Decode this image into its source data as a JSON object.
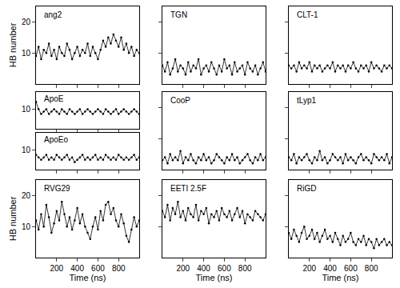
{
  "chart_data": [
    {
      "type": "scatter",
      "marker": "dot",
      "line_style": "solid",
      "tick_labels": "y",
      "y_label": "HB number",
      "x": [
        0,
        25,
        50,
        75,
        100,
        125,
        150,
        175,
        200,
        225,
        250,
        275,
        300,
        325,
        350,
        375,
        400,
        425,
        450,
        475,
        500,
        525,
        550,
        575,
        600,
        625,
        650,
        675,
        700,
        725,
        750,
        775,
        800,
        825,
        850,
        875,
        900,
        925,
        950,
        975,
        1000
      ],
      "xlim": [
        0,
        1000
      ],
      "xticks": [
        200,
        400,
        600,
        800
      ],
      "ylim": [
        0,
        25
      ],
      "yticks": [
        10,
        20
      ],
      "series": [
        {
          "name": "ang2",
          "color": "#000000",
          "values": [
            9,
            12,
            8,
            11,
            10,
            13,
            9,
            11,
            8,
            12,
            10,
            9,
            13,
            11,
            8,
            10,
            12,
            9,
            11,
            10,
            13,
            9,
            12,
            10,
            8,
            11,
            14,
            12,
            15,
            13,
            16,
            14,
            12,
            15,
            11,
            13,
            10,
            12,
            9,
            11,
            10
          ]
        }
      ]
    },
    {
      "type": "scatter",
      "marker": "dot",
      "line_style": "solid",
      "tick_labels": false,
      "x": [
        0,
        25,
        50,
        75,
        100,
        125,
        150,
        175,
        200,
        225,
        250,
        275,
        300,
        325,
        350,
        375,
        400,
        425,
        450,
        475,
        500,
        525,
        550,
        575,
        600,
        625,
        650,
        675,
        700,
        725,
        750,
        775,
        800,
        825,
        850,
        875,
        900,
        925,
        950,
        975,
        1000
      ],
      "xlim": [
        0,
        1000
      ],
      "xticks": [
        200,
        400,
        600,
        800
      ],
      "ylim": [
        0,
        25
      ],
      "yticks": [
        10,
        20
      ],
      "series": [
        {
          "name": "TGN",
          "color": "#000000",
          "values": [
            6,
            4,
            7,
            3,
            5,
            8,
            4,
            6,
            5,
            3,
            7,
            4,
            6,
            5,
            8,
            3,
            5,
            6,
            4,
            7,
            5,
            3,
            6,
            4,
            8,
            5,
            6,
            3,
            7,
            4,
            5,
            6,
            3,
            7,
            5,
            4,
            6,
            3,
            5,
            7,
            4
          ]
        }
      ]
    },
    {
      "type": "scatter",
      "marker": "dot",
      "line_style": "solid",
      "tick_labels": false,
      "x": [
        0,
        25,
        50,
        75,
        100,
        125,
        150,
        175,
        200,
        225,
        250,
        275,
        300,
        325,
        350,
        375,
        400,
        425,
        450,
        475,
        500,
        525,
        550,
        575,
        600,
        625,
        650,
        675,
        700,
        725,
        750,
        775,
        800,
        825,
        850,
        875,
        900,
        925,
        950,
        975,
        1000
      ],
      "xlim": [
        0,
        1000
      ],
      "xticks": [
        200,
        400,
        600,
        800
      ],
      "ylim": [
        0,
        25
      ],
      "yticks": [
        10,
        20
      ],
      "series": [
        {
          "name": "CLT-1",
          "color": "#000000",
          "values": [
            6,
            5,
            6,
            4,
            7,
            5,
            6,
            5,
            7,
            4,
            6,
            5,
            6,
            4,
            5,
            6,
            5,
            7,
            4,
            6,
            5,
            6,
            4,
            6,
            5,
            7,
            5,
            4,
            6,
            5,
            6,
            4,
            7,
            5,
            6,
            5,
            4,
            6,
            5,
            6,
            5
          ]
        }
      ]
    },
    {
      "type": "scatter",
      "marker": "dot",
      "line_style": "solid",
      "tick_labels": "y",
      "x": [
        0,
        25,
        50,
        75,
        100,
        125,
        150,
        175,
        200,
        225,
        250,
        275,
        300,
        325,
        350,
        375,
        400,
        425,
        450,
        475,
        500,
        525,
        550,
        575,
        600,
        625,
        650,
        675,
        700,
        725,
        750,
        775,
        800,
        825,
        850,
        875,
        900,
        925,
        950,
        975,
        1000
      ],
      "xlim": [
        0,
        1000
      ],
      "xticks": [
        200,
        400,
        600,
        800
      ],
      "ylim": [
        2,
        17
      ],
      "yticks": [
        10
      ],
      "series": [
        {
          "name": "ApoE",
          "color": "#000000",
          "values": [
            13,
            10,
            8,
            9,
            10,
            8,
            9,
            10,
            9,
            8,
            10,
            9,
            8,
            10,
            9,
            8,
            9,
            10,
            8,
            9,
            10,
            9,
            8,
            9,
            10,
            9,
            8,
            10,
            9,
            8,
            9,
            10,
            8,
            9,
            10,
            9,
            8,
            9,
            10,
            9,
            8
          ]
        }
      ]
    },
    {
      "type": "scatter",
      "marker": "dot",
      "line_style": "solid",
      "tick_labels": "y",
      "x": [
        0,
        25,
        50,
        75,
        100,
        125,
        150,
        175,
        200,
        225,
        250,
        275,
        300,
        325,
        350,
        375,
        400,
        425,
        450,
        475,
        500,
        525,
        550,
        575,
        600,
        625,
        650,
        675,
        700,
        725,
        750,
        775,
        800,
        825,
        850,
        875,
        900,
        925,
        950,
        975,
        1000
      ],
      "xlim": [
        0,
        1000
      ],
      "xticks": [
        200,
        400,
        600,
        800
      ],
      "ylim": [
        2,
        17
      ],
      "yticks": [
        10
      ],
      "series": [
        {
          "name": "ApoEo",
          "color": "#000000",
          "values": [
            8,
            7,
            6,
            7,
            8,
            6,
            7,
            6,
            8,
            7,
            6,
            7,
            8,
            6,
            7,
            5,
            6,
            7,
            8,
            6,
            7,
            6,
            7,
            8,
            6,
            7,
            6,
            8,
            7,
            6,
            7,
            6,
            8,
            7,
            6,
            7,
            6,
            7,
            8,
            6,
            7
          ]
        }
      ]
    },
    {
      "type": "scatter",
      "marker": "dot",
      "line_style": "solid",
      "tick_labels": false,
      "x": [
        0,
        25,
        50,
        75,
        100,
        125,
        150,
        175,
        200,
        225,
        250,
        275,
        300,
        325,
        350,
        375,
        400,
        425,
        450,
        475,
        500,
        525,
        550,
        575,
        600,
        625,
        650,
        675,
        700,
        725,
        750,
        775,
        800,
        825,
        850,
        875,
        900,
        925,
        950,
        975,
        1000
      ],
      "xlim": [
        0,
        1000
      ],
      "xticks": [
        200,
        400,
        600,
        800
      ],
      "ylim": [
        0,
        25
      ],
      "yticks": [
        10,
        20
      ],
      "series": [
        {
          "name": "CooP",
          "color": "#000000",
          "values": [
            3,
            4,
            2,
            5,
            3,
            4,
            3,
            6,
            2,
            4,
            3,
            5,
            3,
            2,
            4,
            3,
            5,
            3,
            4,
            2,
            3,
            5,
            4,
            3,
            2,
            4,
            3,
            5,
            3,
            4,
            2,
            3,
            4,
            5,
            3,
            2,
            4,
            3,
            5,
            3,
            4
          ]
        }
      ]
    },
    {
      "type": "scatter",
      "marker": "dot",
      "line_style": "solid",
      "tick_labels": false,
      "x": [
        0,
        25,
        50,
        75,
        100,
        125,
        150,
        175,
        200,
        225,
        250,
        275,
        300,
        325,
        350,
        375,
        400,
        425,
        450,
        475,
        500,
        525,
        550,
        575,
        600,
        625,
        650,
        675,
        700,
        725,
        750,
        775,
        800,
        825,
        850,
        875,
        900,
        925,
        950,
        975,
        1000
      ],
      "xlim": [
        0,
        1000
      ],
      "xticks": [
        200,
        400,
        600,
        800
      ],
      "ylim": [
        0,
        25
      ],
      "yticks": [
        10,
        20
      ],
      "series": [
        {
          "name": "tLyp1",
          "color": "#000000",
          "values": [
            4,
            3,
            5,
            2,
            4,
            3,
            4,
            5,
            3,
            2,
            4,
            3,
            6,
            3,
            4,
            2,
            3,
            5,
            4,
            3,
            4,
            2,
            5,
            3,
            4,
            3,
            2,
            4,
            5,
            3,
            4,
            3,
            2,
            5,
            4,
            3,
            4,
            3,
            5,
            2,
            4
          ]
        }
      ]
    },
    {
      "type": "scatter",
      "marker": "dot",
      "line_style": "solid",
      "tick_labels": true,
      "y_label": "HB number",
      "x_label": "Time (ns)",
      "x": [
        0,
        25,
        50,
        75,
        100,
        125,
        150,
        175,
        200,
        225,
        250,
        275,
        300,
        325,
        350,
        375,
        400,
        425,
        450,
        475,
        500,
        525,
        550,
        575,
        600,
        625,
        650,
        675,
        700,
        725,
        750,
        775,
        800,
        825,
        850,
        875,
        900,
        925,
        950,
        975,
        1000
      ],
      "xlim": [
        0,
        1000
      ],
      "xticks": [
        200,
        400,
        600,
        800
      ],
      "ylim": [
        0,
        25
      ],
      "yticks": [
        10,
        20
      ],
      "series": [
        {
          "name": "RVG29",
          "color": "#000000",
          "values": [
            12,
            9,
            14,
            10,
            17,
            13,
            8,
            11,
            15,
            12,
            18,
            14,
            10,
            13,
            9,
            12,
            16,
            11,
            14,
            10,
            8,
            6,
            10,
            13,
            9,
            15,
            12,
            17,
            18,
            14,
            16,
            12,
            10,
            14,
            11,
            7,
            5,
            9,
            13,
            10,
            12
          ]
        }
      ]
    },
    {
      "type": "scatter",
      "marker": "dot",
      "line_style": "solid",
      "tick_labels": "x",
      "x_label": "Time (ns)",
      "x": [
        0,
        25,
        50,
        75,
        100,
        125,
        150,
        175,
        200,
        225,
        250,
        275,
        300,
        325,
        350,
        375,
        400,
        425,
        450,
        475,
        500,
        525,
        550,
        575,
        600,
        625,
        650,
        675,
        700,
        725,
        750,
        775,
        800,
        825,
        850,
        875,
        900,
        925,
        950,
        975,
        1000
      ],
      "xlim": [
        0,
        1000
      ],
      "xticks": [
        200,
        400,
        600,
        800
      ],
      "ylim": [
        0,
        25
      ],
      "yticks": [
        10,
        20
      ],
      "series": [
        {
          "name": "EETI 2.5F",
          "color": "#000000",
          "values": [
            15,
            13,
            17,
            12,
            16,
            14,
            18,
            13,
            15,
            12,
            16,
            14,
            13,
            17,
            12,
            15,
            14,
            16,
            11,
            14,
            13,
            15,
            12,
            16,
            14,
            13,
            15,
            12,
            14,
            16,
            13,
            15,
            11,
            14,
            13,
            12,
            15,
            14,
            13,
            12,
            14
          ]
        }
      ]
    },
    {
      "type": "scatter",
      "marker": "dot",
      "line_style": "solid",
      "tick_labels": "x",
      "x_label": "Time (ns)",
      "x": [
        0,
        25,
        50,
        75,
        100,
        125,
        150,
        175,
        200,
        225,
        250,
        275,
        300,
        325,
        350,
        375,
        400,
        425,
        450,
        475,
        500,
        525,
        550,
        575,
        600,
        625,
        650,
        675,
        700,
        725,
        750,
        775,
        800,
        825,
        850,
        875,
        900,
        925,
        950,
        975,
        1000
      ],
      "xlim": [
        0,
        1000
      ],
      "xticks": [
        200,
        400,
        600,
        800
      ],
      "ylim": [
        0,
        25
      ],
      "yticks": [
        10,
        20
      ],
      "series": [
        {
          "name": "RiGD",
          "color": "#000000",
          "values": [
            8,
            6,
            9,
            7,
            5,
            8,
            10,
            6,
            7,
            9,
            6,
            8,
            5,
            7,
            9,
            6,
            7,
            5,
            8,
            6,
            4,
            7,
            5,
            6,
            8,
            5,
            4,
            6,
            5,
            7,
            4,
            6,
            5,
            3,
            6,
            4,
            5,
            6,
            4,
            5,
            4
          ]
        }
      ]
    }
  ]
}
